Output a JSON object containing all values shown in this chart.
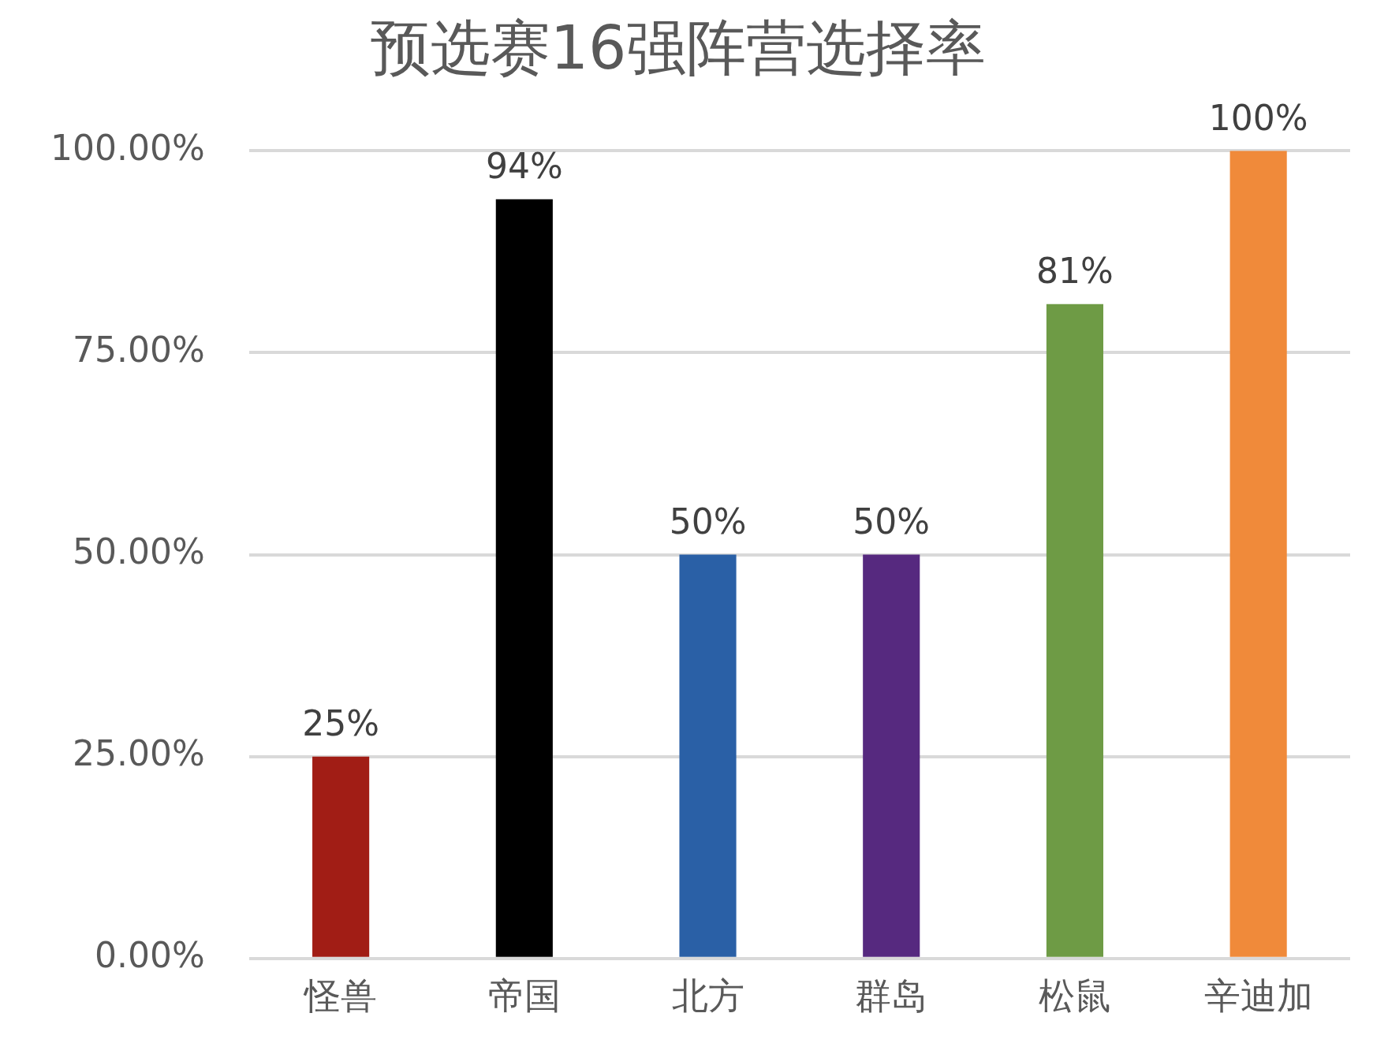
{
  "chart_data": {
    "type": "bar",
    "title": "预选赛16强阵营选择率",
    "categories": [
      "怪兽",
      "帝国",
      "北方",
      "群岛",
      "松鼠",
      "辛迪加"
    ],
    "values": [
      25,
      94,
      50,
      50,
      81,
      100
    ],
    "colors": [
      "#a11d15",
      "#000000",
      "#2a60a6",
      "#56297f",
      "#6e9b45",
      "#f08a3a"
    ],
    "value_labels": [
      "25%",
      "94%",
      "50%",
      "50%",
      "81%",
      "100%"
    ],
    "ylim": [
      0,
      100
    ],
    "yticks": [
      {
        "value": 0,
        "label": "0.00%"
      },
      {
        "value": 25,
        "label": "25.00%"
      },
      {
        "value": 50,
        "label": "50.00%"
      },
      {
        "value": 75,
        "label": "75.00%"
      },
      {
        "value": 100,
        "label": "100.00%"
      }
    ],
    "grid": "y"
  }
}
